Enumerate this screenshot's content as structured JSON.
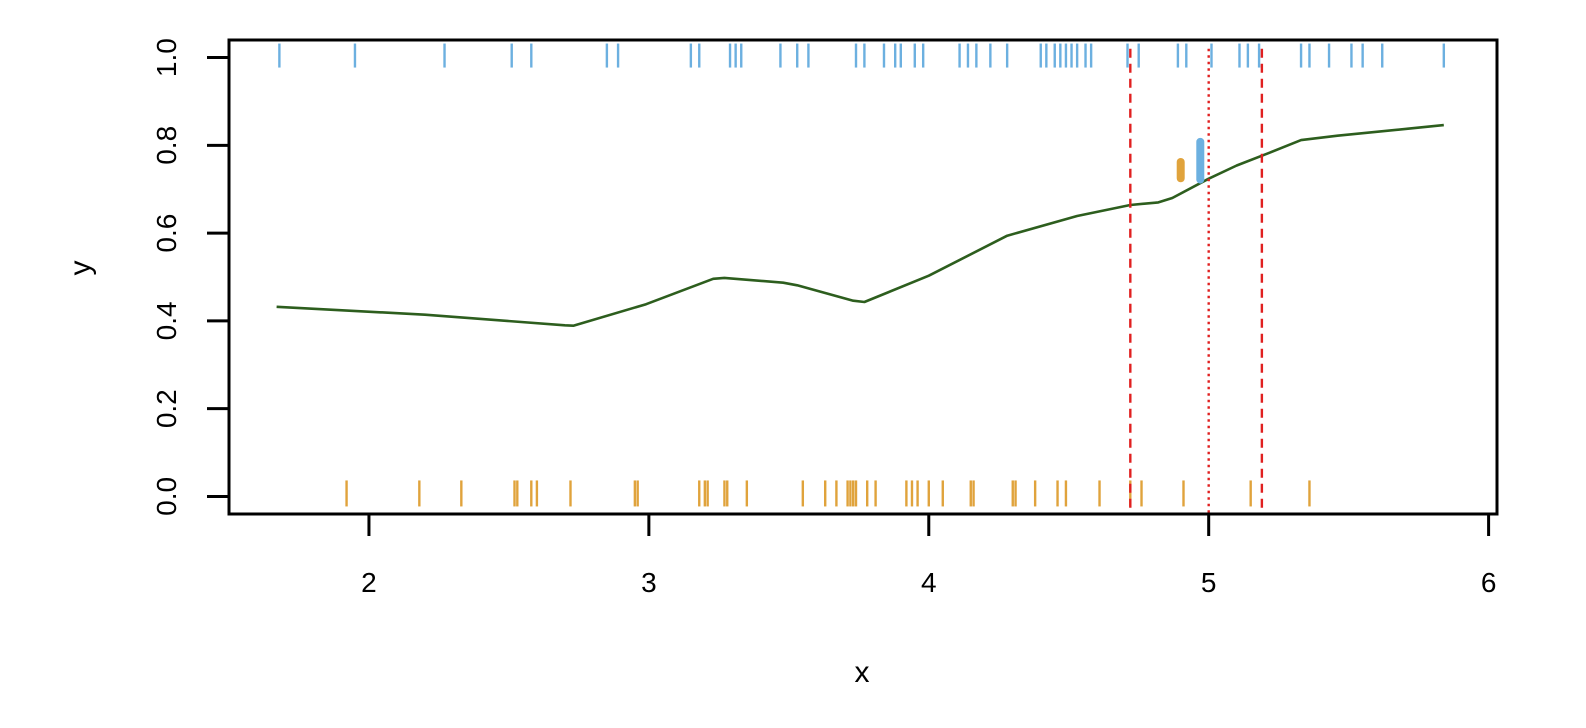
{
  "chart_data": {
    "type": "line",
    "xlabel": "x",
    "ylabel": "y",
    "xlim": [
      1.5,
      6.03
    ],
    "ylim": [
      -0.04,
      1.04
    ],
    "xticks": [
      2,
      3,
      4,
      5,
      6
    ],
    "yticks": [
      0.0,
      0.2,
      0.4,
      0.6,
      0.8,
      1.0
    ],
    "xtick_labels": [
      "2",
      "3",
      "4",
      "5",
      "6"
    ],
    "ytick_labels": [
      "0.0",
      "0.2",
      "0.4",
      "0.6",
      "0.8",
      "1.0"
    ],
    "grid": false,
    "legend": "none",
    "series": [
      {
        "kind": "smooth-line",
        "color": "#2d5e1e",
        "x": [
          1.67,
          2.2,
          2.7,
          2.73,
          2.99,
          3.23,
          3.27,
          3.48,
          3.53,
          3.73,
          3.77,
          4.0,
          4.28,
          4.53,
          4.72,
          4.82,
          4.87,
          5.0,
          5.1,
          5.22,
          5.33,
          5.46,
          5.84
        ],
        "y": [
          0.432,
          0.414,
          0.39,
          0.389,
          0.438,
          0.496,
          0.498,
          0.487,
          0.481,
          0.446,
          0.443,
          0.503,
          0.594,
          0.639,
          0.664,
          0.67,
          0.68,
          0.724,
          0.754,
          0.784,
          0.812,
          0.822,
          0.846
        ]
      }
    ],
    "rug_top": {
      "color": "#6cb0e0",
      "y": 1.0,
      "x": [
        1.68,
        1.95,
        2.27,
        2.51,
        2.58,
        2.85,
        2.89,
        3.15,
        3.18,
        3.29,
        3.31,
        3.33,
        3.47,
        3.53,
        3.57,
        3.74,
        3.77,
        3.84,
        3.88,
        3.9,
        3.95,
        3.98,
        4.11,
        4.14,
        4.17,
        4.22,
        4.28,
        4.4,
        4.42,
        4.45,
        4.47,
        4.49,
        4.51,
        4.53,
        4.56,
        4.58,
        4.71,
        4.75,
        4.89,
        4.92,
        5.01,
        5.11,
        5.14,
        5.18,
        5.33,
        5.36,
        5.43,
        5.51,
        5.55,
        5.62,
        5.84
      ]
    },
    "rug_bottom": {
      "color": "#e0a33c",
      "y": 0.0,
      "x": [
        1.92,
        2.18,
        2.33,
        2.52,
        2.53,
        2.58,
        2.6,
        2.72,
        2.95,
        2.96,
        3.18,
        3.2,
        3.21,
        3.27,
        3.28,
        3.35,
        3.55,
        3.63,
        3.67,
        3.71,
        3.72,
        3.73,
        3.74,
        3.78,
        3.81,
        3.92,
        3.94,
        3.96,
        4.0,
        4.05,
        4.15,
        4.16,
        4.3,
        4.31,
        4.38,
        4.46,
        4.49,
        4.61,
        4.72,
        4.76,
        4.91,
        5.15,
        5.36
      ]
    },
    "reference_lines": [
      {
        "style": "dashed",
        "color": "#e02020",
        "x": 4.72
      },
      {
        "style": "dotted",
        "color": "#e02020",
        "x": 5.0
      },
      {
        "style": "dashed",
        "color": "#e02020",
        "x": 5.19
      }
    ],
    "intervals": [
      {
        "color": "#e0a33c",
        "x": 4.9,
        "ymin": 0.725,
        "ymax": 0.762
      },
      {
        "color": "#6cb0e0",
        "x": 4.97,
        "ymin": 0.722,
        "ymax": 0.808
      }
    ]
  }
}
